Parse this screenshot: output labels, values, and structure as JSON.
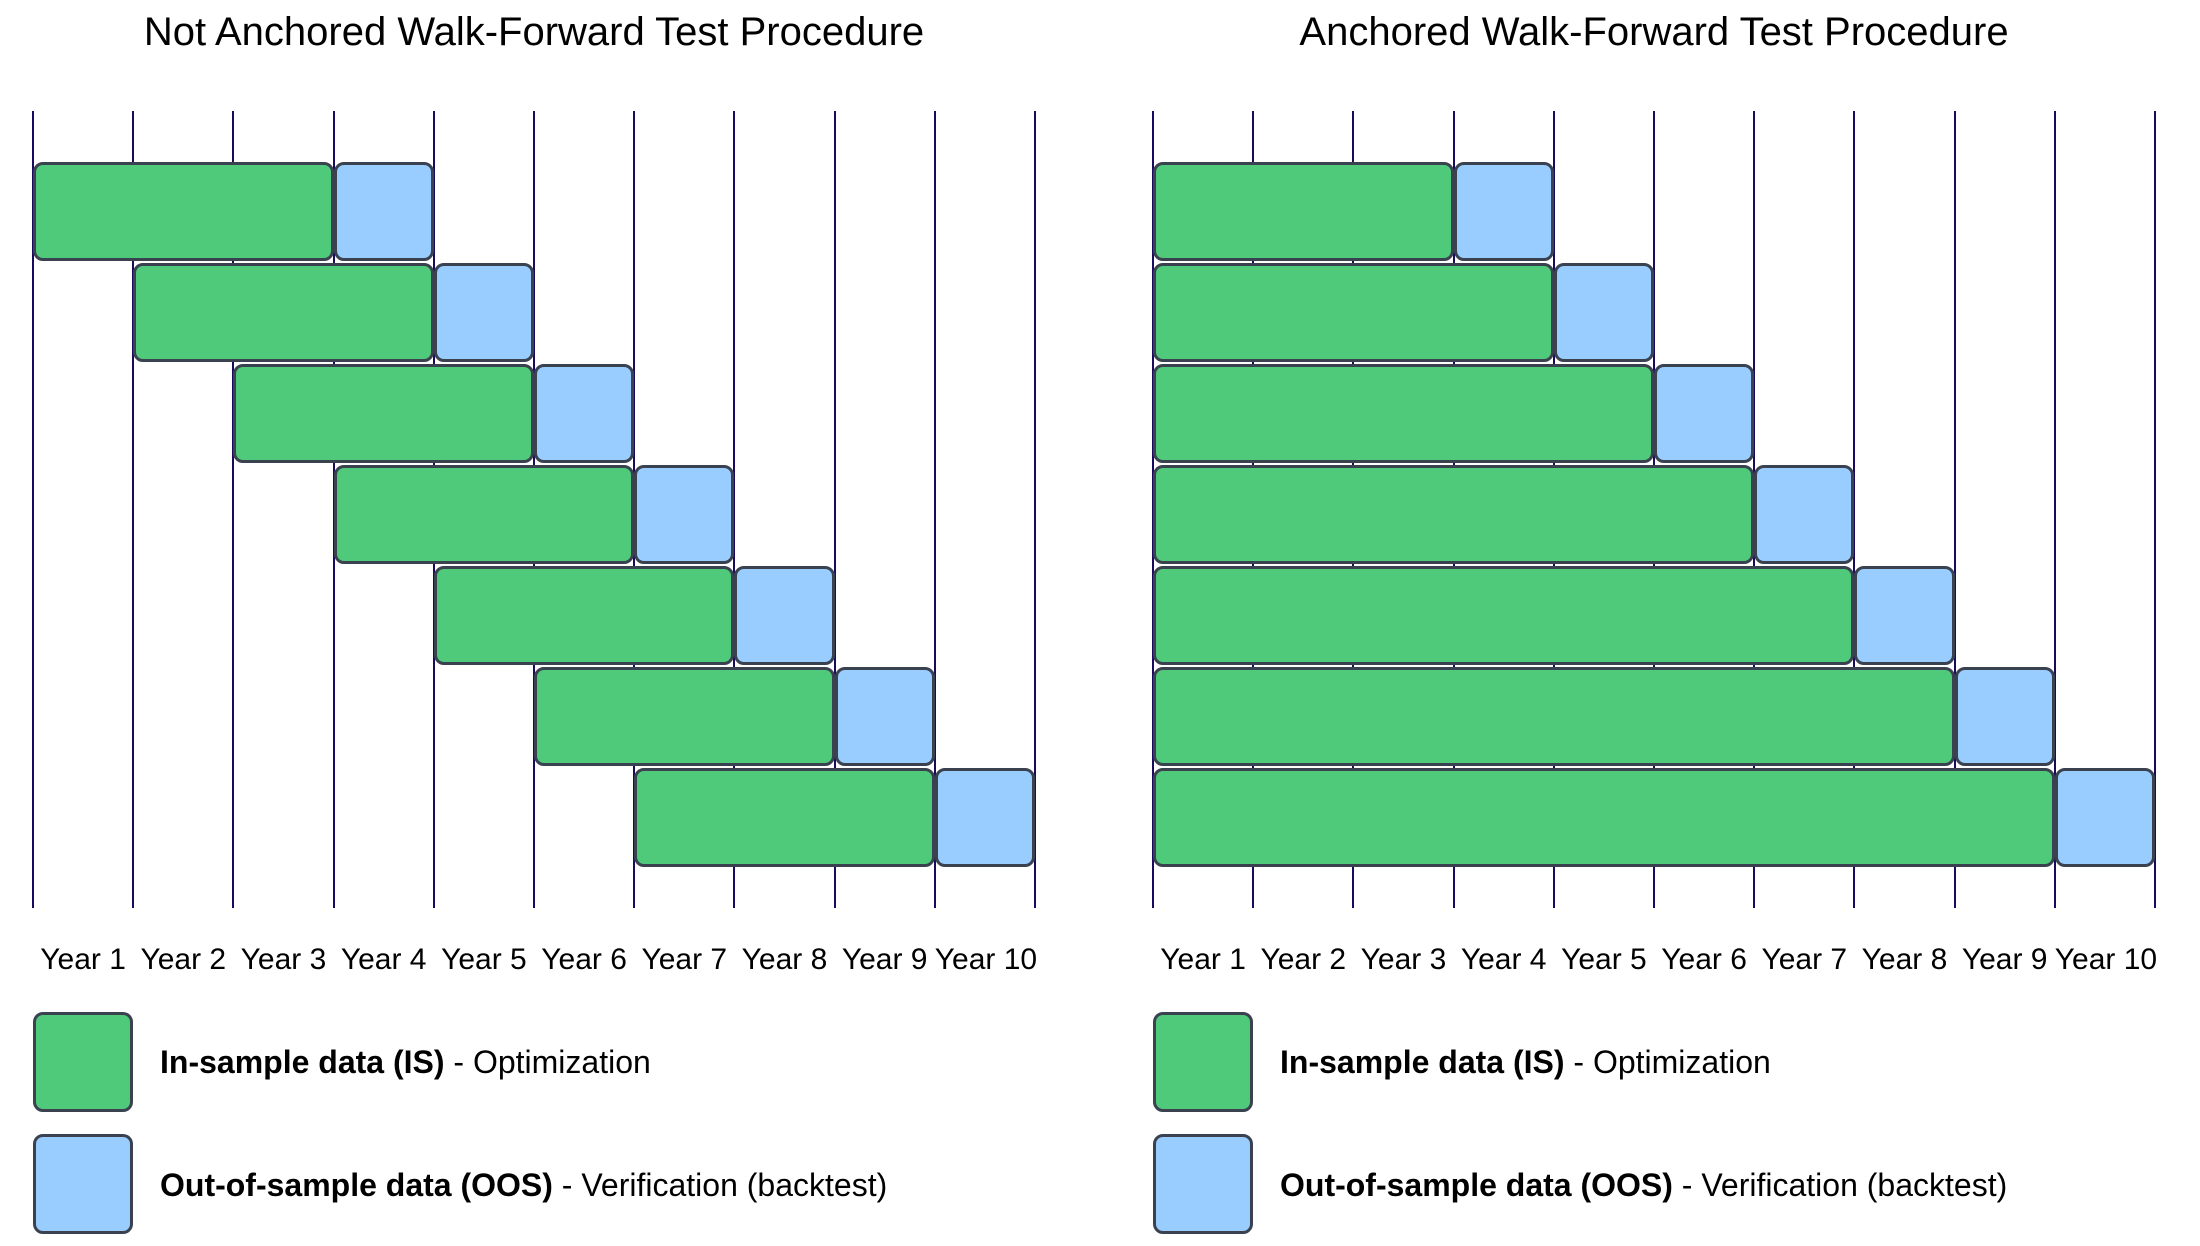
{
  "charts": [
    {
      "title": "Not Anchored Walk-Forward Test Procedure",
      "anchored": false,
      "years": [
        "Year 1",
        "Year 2",
        "Year 3",
        "Year 4",
        "Year 5",
        "Year 6",
        "Year 7",
        "Year 8",
        "Year 9",
        "Year 10"
      ],
      "rows": [
        {
          "is_start": 1,
          "is_end": 3,
          "oos": 4
        },
        {
          "is_start": 2,
          "is_end": 4,
          "oos": 5
        },
        {
          "is_start": 3,
          "is_end": 5,
          "oos": 6
        },
        {
          "is_start": 4,
          "is_end": 6,
          "oos": 7
        },
        {
          "is_start": 5,
          "is_end": 7,
          "oos": 8
        },
        {
          "is_start": 6,
          "is_end": 8,
          "oos": 9
        },
        {
          "is_start": 7,
          "is_end": 9,
          "oos": 10
        }
      ]
    },
    {
      "title": "Anchored Walk-Forward Test Procedure",
      "anchored": true,
      "years": [
        "Year 1",
        "Year 2",
        "Year 3",
        "Year 4",
        "Year 5",
        "Year 6",
        "Year 7",
        "Year 8",
        "Year 9",
        "Year 10"
      ],
      "rows": [
        {
          "is_start": 1,
          "is_end": 3,
          "oos": 4
        },
        {
          "is_start": 1,
          "is_end": 4,
          "oos": 5
        },
        {
          "is_start": 1,
          "is_end": 5,
          "oos": 6
        },
        {
          "is_start": 1,
          "is_end": 6,
          "oos": 7
        },
        {
          "is_start": 1,
          "is_end": 7,
          "oos": 8
        },
        {
          "is_start": 1,
          "is_end": 8,
          "oos": 9
        },
        {
          "is_start": 1,
          "is_end": 9,
          "oos": 10
        }
      ]
    }
  ],
  "legend": {
    "is_bold": "In-sample data (IS)",
    "is_rest": " - Optimization",
    "oos_bold": "Out-of-sample data (OOS)",
    "oos_rest": " - Verification (backtest)"
  },
  "colors": {
    "in_sample_fill": "#4fc97a",
    "out_of_sample_fill": "#99ccff",
    "bar_stroke": "#3a4250",
    "gridline": "#190a5e",
    "text": "#000000"
  }
}
